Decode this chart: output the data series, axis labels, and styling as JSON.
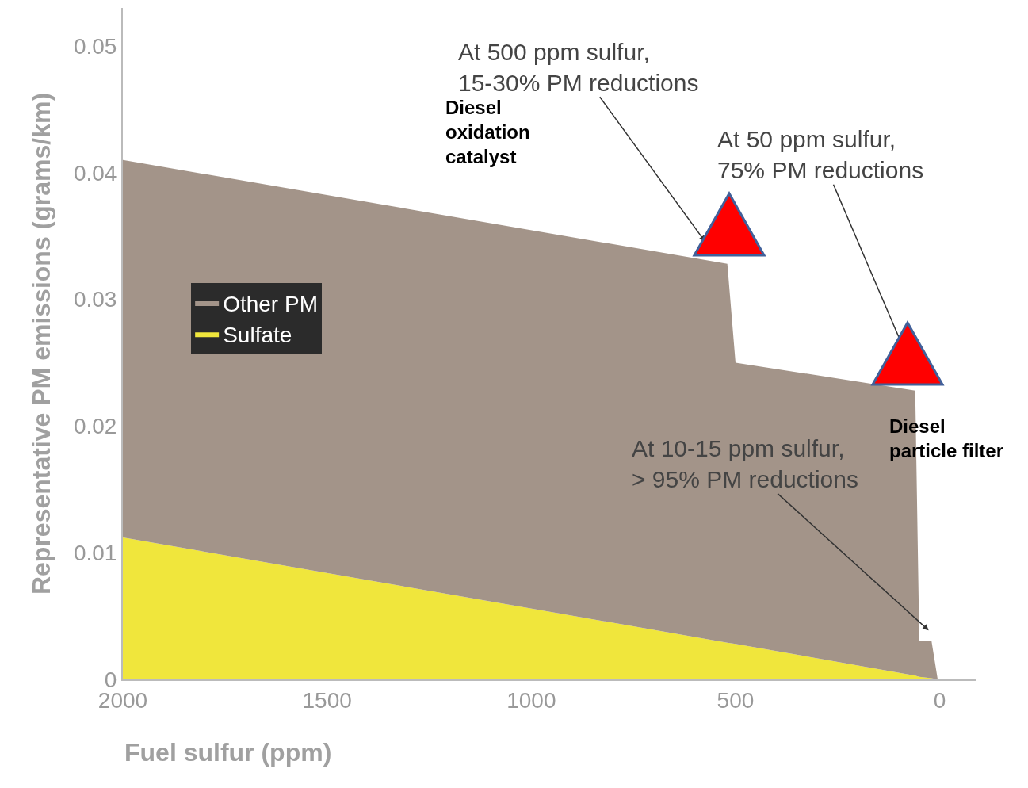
{
  "chart_data": {
    "type": "area",
    "stacked": true,
    "xlabel": "Fuel sulfur (ppm)",
    "ylabel": "Representative PM emissions (grams/km)",
    "x": [
      2000,
      520,
      500,
      60,
      50,
      20,
      5
    ],
    "series": [
      {
        "name": "Sulfate",
        "color": "#f0e63c",
        "values": [
          0.0112,
          0.0029,
          0.0028,
          0.0003,
          0.0002,
          0.0001,
          0
        ]
      },
      {
        "name": "Other PM",
        "color": "#a39489",
        "values": [
          0.0298,
          0.0299,
          0.0222,
          0.0225,
          0.0028,
          0.0029,
          0
        ]
      }
    ],
    "xlim": [
      2000,
      -90
    ],
    "xticks": [
      2000,
      1500,
      1000,
      500,
      0
    ],
    "ylim": [
      0,
      0.053
    ],
    "yticks": [
      0,
      0.01,
      0.02,
      0.03,
      0.04,
      0.05
    ],
    "grid": false,
    "legend": "left",
    "marker": "none",
    "annotations": [
      "At 500 ppm sulfur,\n15-30% PM reductions",
      "At 50 ppm sulfur,\n75% PM reductions",
      "At 10-15 ppm sulfur,\n> 95% PM reductions",
      "Diesel\noxidation\ncatalyst",
      "Diesel\nparticle filter"
    ]
  }
}
